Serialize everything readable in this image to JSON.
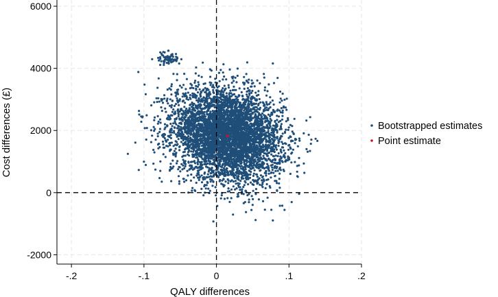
{
  "chart_data": {
    "type": "scatter",
    "xlabel": "QALY differences",
    "ylabel": "Cost differences (£)",
    "xlim": [
      -0.22,
      0.2
    ],
    "ylim": [
      -2300,
      6200
    ],
    "x_ticks": [
      -0.2,
      -0.1,
      0,
      0.1,
      0.2
    ],
    "x_tick_labels": [
      "-.2",
      "-.1",
      "0",
      ".1",
      ".2"
    ],
    "y_ticks": [
      -2000,
      0,
      2000,
      4000,
      6000
    ],
    "y_tick_labels": [
      "-2000",
      "0",
      "2000",
      "4000",
      "6000"
    ],
    "grid": true,
    "reference_lines": {
      "x": 0,
      "y": 0,
      "style": "dashed"
    },
    "legend_position": "right",
    "series": [
      {
        "name": "Bootstrapped estimates",
        "color": "#1f4e79",
        "distribution": {
          "count": 5000,
          "center_x": 0.015,
          "center_y": 1850,
          "sd_x": 0.038,
          "sd_y": 750,
          "range_x": [
            -0.135,
            0.14
          ],
          "range_y": [
            -1000,
            4800
          ]
        }
      },
      {
        "name": "Point estimate",
        "color": "#c8102e",
        "points": [
          {
            "x": 0.015,
            "y": 1830
          }
        ]
      }
    ]
  }
}
